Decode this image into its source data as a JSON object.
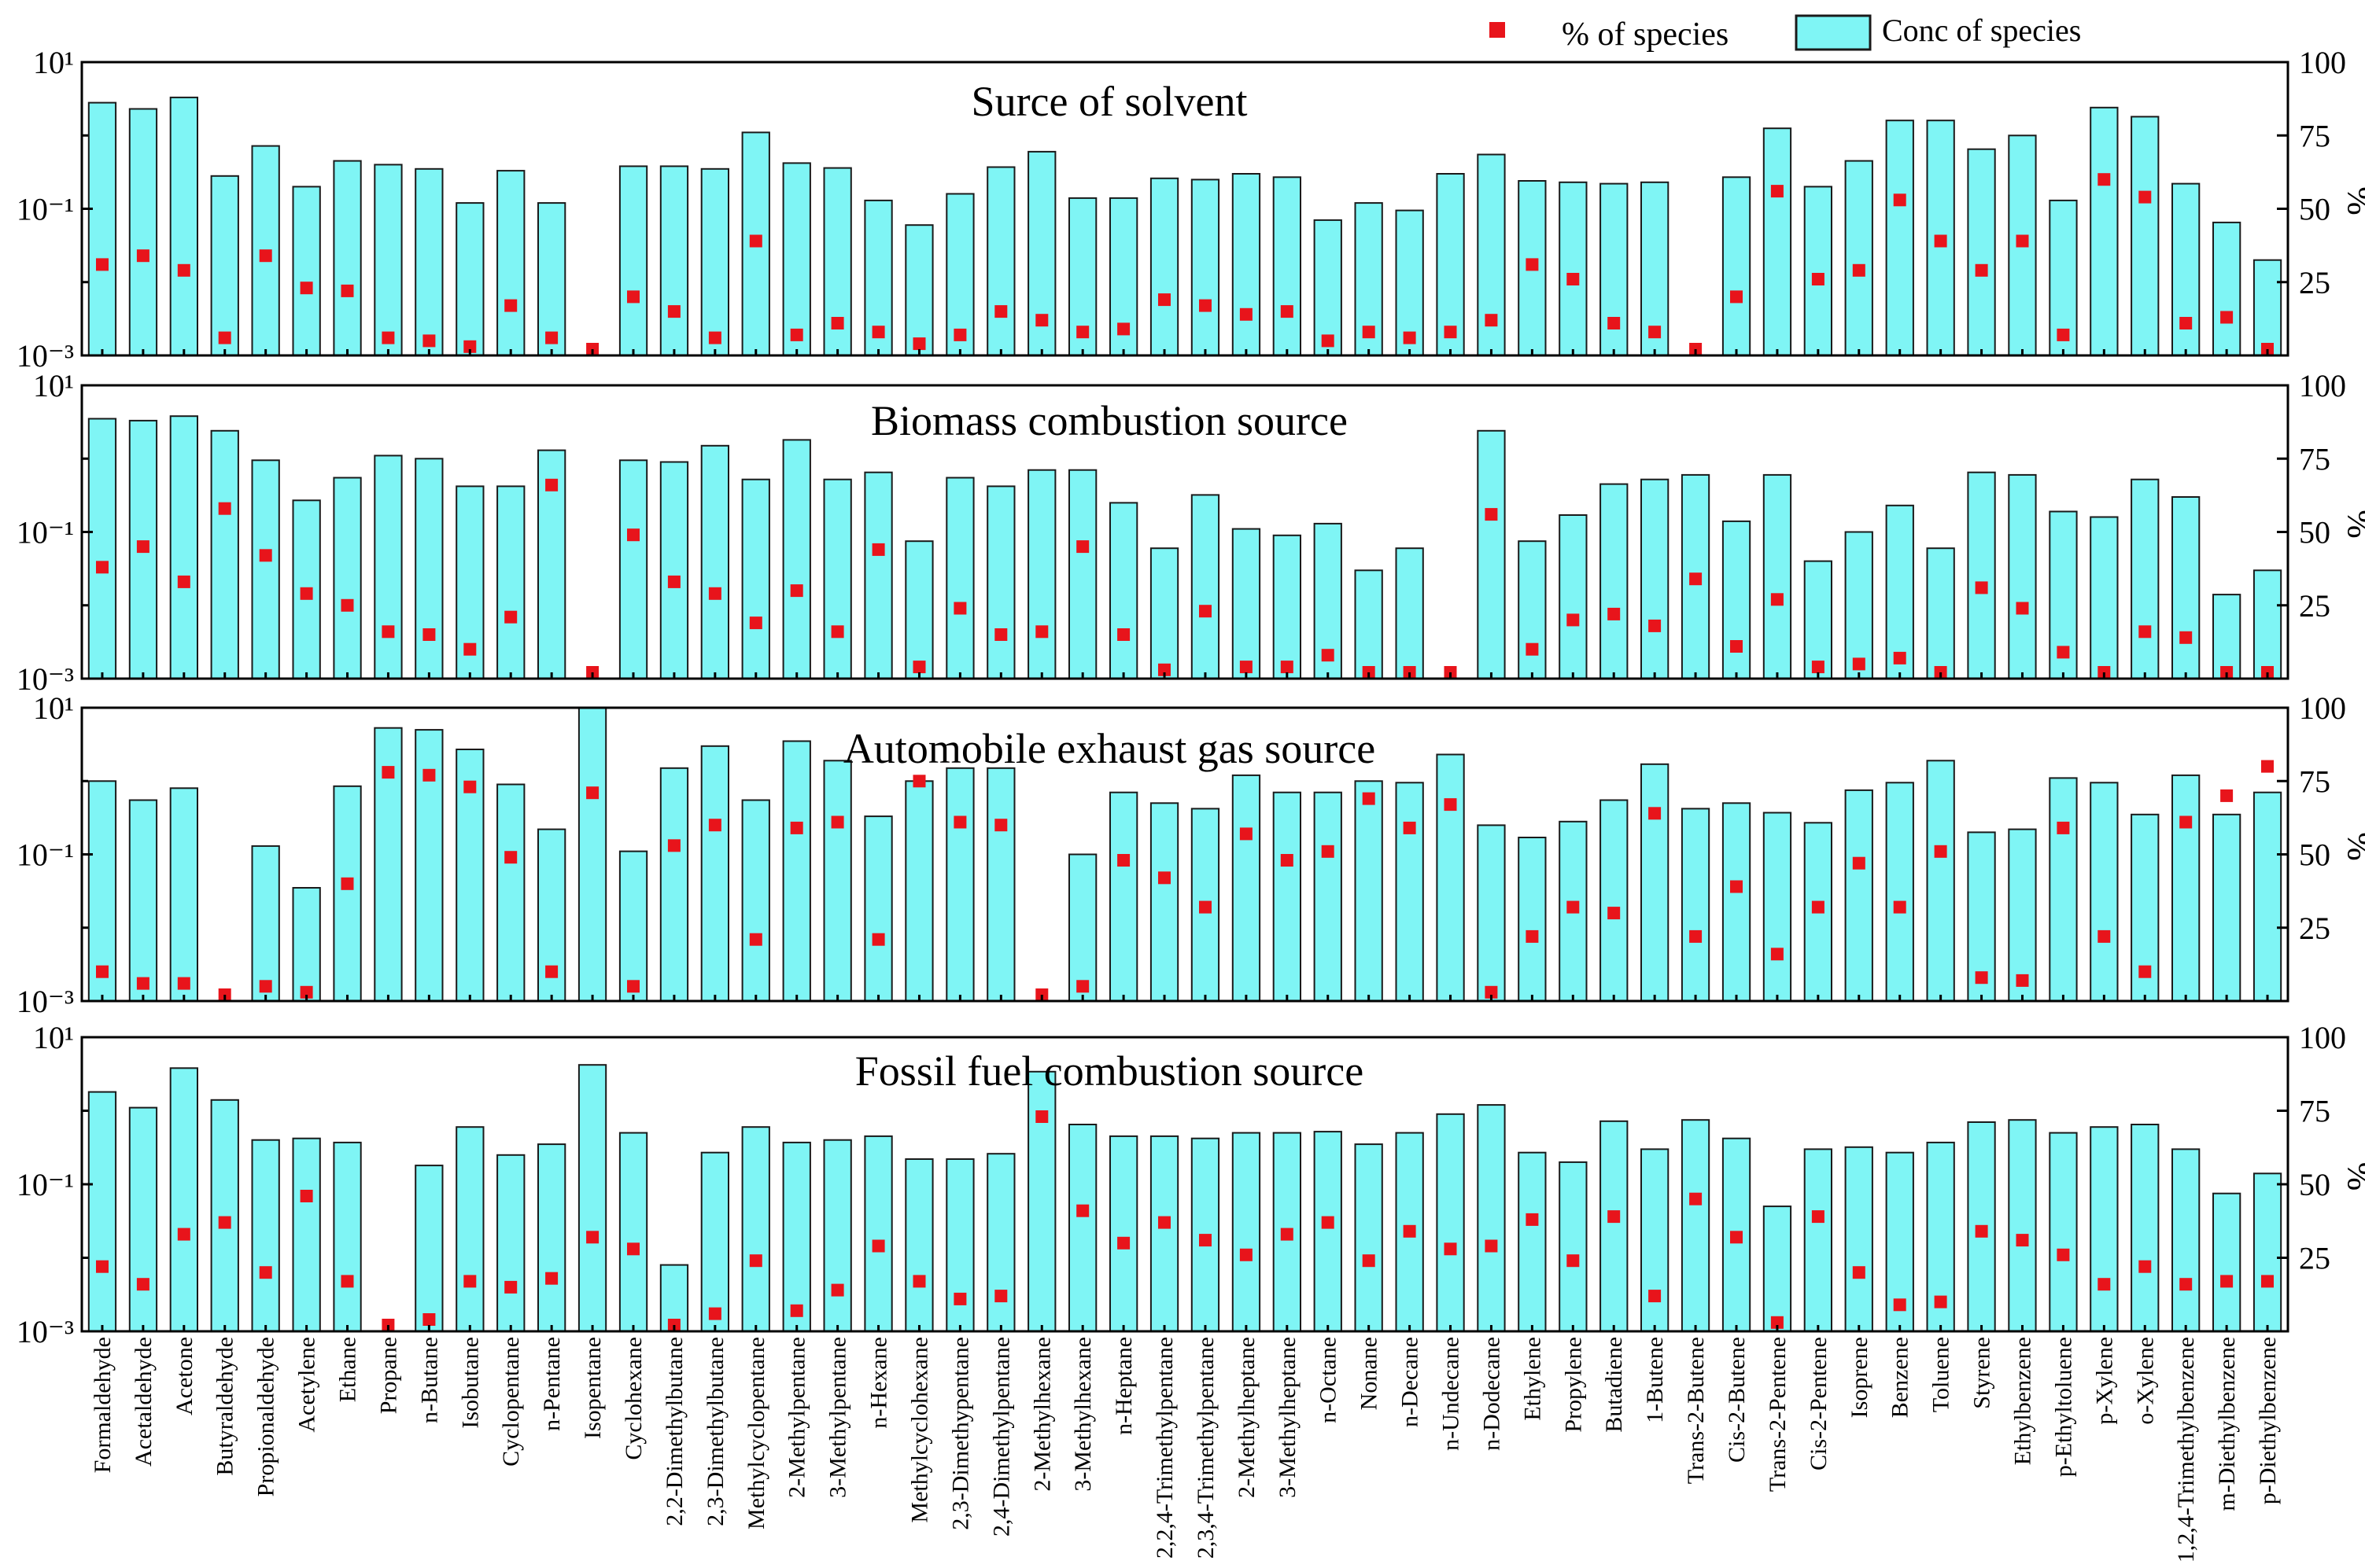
{
  "colors": {
    "bar_fill": "#7ff5f5",
    "bar_stroke": "#1a1a1a",
    "point": "#e8141b"
  },
  "legend": {
    "point_label": "% of species",
    "bar_label": "Conc of species"
  },
  "chart_data": [
    {
      "type": "bar",
      "title": "Surce of solvent",
      "categories": [
        "Formaldehyde",
        "Acetaldehyde",
        "Acetone",
        "Butyraldehyde",
        "Propionaldehyde",
        "Acetylene",
        "Ethane",
        "Propane",
        "n-Butane",
        "Isobutane",
        "Cyclopentane",
        "n-Pentane",
        "Isopentane",
        "Cyclohexane",
        "2,2-Dimethylbutane",
        "2,3-Dimethylbutane",
        "Methylcyclopentane",
        "2-Methylpentane",
        "3-Methylpentane",
        "n-Hexane",
        "Methylcyclohexane",
        "2,3-Dimethypentane",
        "2,4-Dimethylpentane",
        "2-Methylhexane",
        "3-Methylhexane",
        "n-Heptane",
        "2,2,4-Trimethylpentane",
        "2,3,4-Trimethylpentane",
        "2-Methylheptane",
        "3-Methylheptane",
        "n-Octane",
        "Nonane",
        "n-Decane",
        "n-Undecane",
        "n-Dodecane",
        "Ethylene",
        "Propylene",
        "Butadiene",
        "1-Butene",
        "Trans-2-Butene",
        "Cis-2-Butene",
        "Trans-2-Pentene",
        "Cis-2-Pentene",
        "Isoprene",
        "Benzene",
        "Toluene",
        "Styrene",
        "Ethylbenzene",
        "p-Ethyltoluene",
        "p-Xylene",
        "o-Xylene",
        "1,2,4-Trimethylbenzene",
        "m-Diethylbenzene",
        "p-Diethylbenzene"
      ],
      "series": [
        {
          "name": "Conc of species",
          "axis": "left",
          "scale": "log",
          "values": [
            2.8,
            2.3,
            3.3,
            0.28,
            0.72,
            0.2,
            0.45,
            0.4,
            0.35,
            0.12,
            0.33,
            0.12,
            0.001,
            0.38,
            0.38,
            0.35,
            1.1,
            0.42,
            0.36,
            0.13,
            0.06,
            0.16,
            0.37,
            0.6,
            0.14,
            0.14,
            0.26,
            0.25,
            0.3,
            0.27,
            0.07,
            0.12,
            0.095,
            0.3,
            0.55,
            0.24,
            0.23,
            0.22,
            0.23,
            0.001,
            0.27,
            1.25,
            0.2,
            0.45,
            1.6,
            1.6,
            0.65,
            1.0,
            0.13,
            2.4,
            1.8,
            0.22,
            0.065,
            0.02
          ]
        },
        {
          "name": "% of species",
          "axis": "right",
          "scale": "linear",
          "values": [
            31,
            34,
            29,
            6,
            34,
            23,
            22,
            6,
            5,
            3,
            17,
            6,
            1,
            20,
            15,
            6,
            39,
            7,
            11,
            8,
            4,
            7,
            15,
            12,
            8,
            9,
            19,
            17,
            14,
            15,
            5,
            8,
            6,
            8,
            12,
            31,
            26,
            11,
            8,
            1,
            20,
            56,
            26,
            29,
            53,
            39,
            29,
            39,
            7,
            60,
            54,
            11,
            13,
            2
          ]
        }
      ],
      "ylabel_left": "",
      "ylim_left": [
        0.001,
        10
      ],
      "ylabel_right": "%",
      "ylim_right": [
        0,
        100
      ],
      "yticks_left": [
        "10¹",
        "10⁻¹",
        "10⁻³"
      ],
      "yticks_right": [
        "100",
        "75",
        "50",
        "25"
      ]
    },
    {
      "type": "bar",
      "title": "Biomass combustion source",
      "categories": [
        "Formaldehyde",
        "Acetaldehyde",
        "Acetone",
        "Butyraldehyde",
        "Propionaldehyde",
        "Acetylene",
        "Ethane",
        "Propane",
        "n-Butane",
        "Isobutane",
        "Cyclopentane",
        "n-Pentane",
        "Isopentane",
        "Cyclohexane",
        "2,2-Dimethylbutane",
        "2,3-Dimethylbutane",
        "Methylcyclopentane",
        "2-Methylpentane",
        "3-Methylpentane",
        "n-Hexane",
        "Methylcyclohexane",
        "2,3-Dimethypentane",
        "2,4-Dimethylpentane",
        "2-Methylhexane",
        "3-Methylhexane",
        "n-Heptane",
        "2,2,4-Trimethylpentane",
        "2,3,4-Trimethylpentane",
        "2-Methylheptane",
        "3-Methylheptane",
        "n-Octane",
        "Nonane",
        "n-Decane",
        "n-Undecane",
        "n-Dodecane",
        "Ethylene",
        "Propylene",
        "Butadiene",
        "1-Butene",
        "Trans-2-Butene",
        "Cis-2-Butene",
        "Trans-2-Pentene",
        "Cis-2-Pentene",
        "Isoprene",
        "Benzene",
        "Toluene",
        "Styrene",
        "Ethylbenzene",
        "p-Ethyltoluene",
        "p-Xylene",
        "o-Xylene",
        "1,2,4-Trimethylbenzene",
        "m-Diethylbenzene",
        "p-Diethylbenzene"
      ],
      "series": [
        {
          "name": "Conc of species",
          "axis": "left",
          "scale": "log",
          "values": [
            3.5,
            3.3,
            3.8,
            2.4,
            0.95,
            0.27,
            0.55,
            1.1,
            1.0,
            0.42,
            0.42,
            1.3,
            0.001,
            0.95,
            0.9,
            1.5,
            0.52,
            1.8,
            0.52,
            0.65,
            0.075,
            0.55,
            0.42,
            0.7,
            0.7,
            0.25,
            0.06,
            0.32,
            0.11,
            0.09,
            0.13,
            0.03,
            0.06,
            0.001,
            2.4,
            0.075,
            0.17,
            0.45,
            0.52,
            0.6,
            0.14,
            0.6,
            0.04,
            0.1,
            0.23,
            0.06,
            0.65,
            0.6,
            0.19,
            0.16,
            0.52,
            0.3,
            0.014,
            0.03
          ]
        },
        {
          "name": "% of species",
          "axis": "right",
          "scale": "linear",
          "values": [
            38,
            45,
            33,
            58,
            42,
            29,
            25,
            16,
            15,
            10,
            21,
            66,
            0,
            49,
            33,
            29,
            19,
            30,
            16,
            44,
            4,
            24,
            15,
            16,
            45,
            15,
            3,
            23,
            4,
            4,
            8,
            1,
            2,
            0,
            56,
            10,
            20,
            22,
            18,
            34,
            11,
            27,
            4,
            5,
            7,
            1,
            31,
            24,
            9,
            2,
            16,
            14,
            1,
            2
          ]
        }
      ],
      "ylabel_left": "",
      "ylim_left": [
        0.001,
        10
      ],
      "ylabel_right": "%",
      "ylim_right": [
        0,
        100
      ],
      "yticks_left": [
        "10¹",
        "10⁻¹",
        "10⁻³"
      ],
      "yticks_right": [
        "100",
        "75",
        "50",
        "25"
      ]
    },
    {
      "type": "bar",
      "title": "Automobile exhaust gas source",
      "categories": [
        "Formaldehyde",
        "Acetaldehyde",
        "Acetone",
        "Butyraldehyde",
        "Propionaldehyde",
        "Acetylene",
        "Ethane",
        "Propane",
        "n-Butane",
        "Isobutane",
        "Cyclopentane",
        "n-Pentane",
        "Isopentane",
        "Cyclohexane",
        "2,2-Dimethylbutane",
        "2,3-Dimethylbutane",
        "Methylcyclopentane",
        "2-Methylpentane",
        "3-Methylpentane",
        "n-Hexane",
        "Methylcyclohexane",
        "2,3-Dimethypentane",
        "2,4-Dimethylpentane",
        "2-Methylhexane",
        "3-Methylhexane",
        "n-Heptane",
        "2,2,4-Trimethylpentane",
        "2,3,4-Trimethylpentane",
        "2-Methylheptane",
        "3-Methylheptane",
        "n-Octane",
        "Nonane",
        "n-Decane",
        "n-Undecane",
        "n-Dodecane",
        "Ethylene",
        "Propylene",
        "Butadiene",
        "1-Butene",
        "Trans-2-Butene",
        "Cis-2-Butene",
        "Trans-2-Pentene",
        "Cis-2-Pentene",
        "Isoprene",
        "Benzene",
        "Toluene",
        "Styrene",
        "Ethylbenzene",
        "p-Ethyltoluene",
        "p-Xylene",
        "o-Xylene",
        "1,2,4-Trimethylbenzene",
        "m-Diethylbenzene",
        "p-Diethylbenzene"
      ],
      "series": [
        {
          "name": "Conc of species",
          "axis": "left",
          "scale": "log",
          "values": [
            1.0,
            0.55,
            0.8,
            0.001,
            0.13,
            0.035,
            0.85,
            5.3,
            5.0,
            2.7,
            0.9,
            0.22,
            10,
            0.11,
            1.5,
            3.0,
            0.55,
            3.5,
            1.9,
            0.33,
            1.0,
            1.5,
            1.5,
            0.001,
            0.1,
            0.7,
            0.5,
            0.42,
            1.2,
            0.7,
            0.7,
            1.0,
            0.95,
            2.3,
            0.25,
            0.17,
            0.28,
            0.55,
            1.7,
            0.42,
            0.5,
            0.37,
            0.27,
            0.75,
            0.95,
            1.9,
            0.2,
            0.22,
            1.1,
            0.95,
            0.35,
            1.2,
            0.35,
            0.7
          ]
        },
        {
          "name": "% of species",
          "axis": "right",
          "scale": "linear",
          "values": [
            10,
            6,
            6,
            0,
            5,
            3,
            40,
            78,
            77,
            73,
            49,
            10,
            71,
            5,
            53,
            60,
            21,
            59,
            61,
            21,
            75,
            61,
            60,
            0,
            5,
            48,
            42,
            32,
            57,
            48,
            51,
            69,
            59,
            67,
            3,
            22,
            32,
            30,
            64,
            22,
            39,
            16,
            32,
            47,
            32,
            51,
            8,
            7,
            59,
            22,
            10,
            61,
            70,
            80
          ]
        }
      ],
      "ylabel_left": "",
      "ylim_left": [
        0.001,
        10
      ],
      "ylabel_right": "%",
      "ylim_right": [
        0,
        100
      ],
      "yticks_left": [
        "10¹",
        "10⁻¹",
        "10⁻³"
      ],
      "yticks_right": [
        "100",
        "75",
        "50",
        "25"
      ]
    },
    {
      "type": "bar",
      "title": "Fossil fuel combustion source",
      "categories": [
        "Formaldehyde",
        "Acetaldehyde",
        "Acetone",
        "Butyraldehyde",
        "Propionaldehyde",
        "Acetylene",
        "Ethane",
        "Propane",
        "n-Butane",
        "Isobutane",
        "Cyclopentane",
        "n-Pentane",
        "Isopentane",
        "Cyclohexane",
        "2,2-Dimethylbutane",
        "2,3-Dimethylbutane",
        "Methylcyclopentane",
        "2-Methylpentane",
        "3-Methylpentane",
        "n-Hexane",
        "Methylcyclohexane",
        "2,3-Dimethypentane",
        "2,4-Dimethylpentane",
        "2-Methylhexane",
        "3-Methylhexane",
        "n-Heptane",
        "2,2,4-Trimethylpentane",
        "2,3,4-Trimethylpentane",
        "2-Methylheptane",
        "3-Methylheptane",
        "n-Octane",
        "Nonane",
        "n-Decane",
        "n-Undecane",
        "n-Dodecane",
        "Ethylene",
        "Propylene",
        "Butadiene",
        "1-Butene",
        "Trans-2-Butene",
        "Cis-2-Butene",
        "Trans-2-Pentene",
        "Cis-2-Pentene",
        "Isoprene",
        "Benzene",
        "Toluene",
        "Styrene",
        "Ethylbenzene",
        "p-Ethyltoluene",
        "p-Xylene",
        "o-Xylene",
        "1,2,4-Trimethylbenzene",
        "m-Diethylbenzene",
        "p-Diethylbenzene"
      ],
      "series": [
        {
          "name": "Conc of species",
          "axis": "left",
          "scale": "log",
          "values": [
            1.8,
            1.1,
            3.8,
            1.4,
            0.4,
            0.42,
            0.37,
            0.001,
            0.18,
            0.6,
            0.25,
            0.35,
            4.2,
            0.5,
            0.008,
            0.27,
            0.6,
            0.37,
            0.4,
            0.45,
            0.22,
            0.22,
            0.26,
            3.4,
            0.65,
            0.45,
            0.45,
            0.42,
            0.5,
            0.5,
            0.52,
            0.35,
            0.5,
            0.9,
            1.2,
            0.27,
            0.2,
            0.72,
            0.3,
            0.75,
            0.42,
            0.05,
            0.3,
            0.32,
            0.27,
            0.37,
            0.7,
            0.75,
            0.5,
            0.6,
            0.65,
            0.3,
            0.075,
            0.14
          ]
        },
        {
          "name": "% of species",
          "axis": "right",
          "scale": "linear",
          "values": [
            22,
            16,
            33,
            37,
            20,
            46,
            17,
            1,
            4,
            17,
            15,
            18,
            32,
            28,
            1,
            6,
            24,
            7,
            14,
            29,
            17,
            11,
            12,
            73,
            41,
            30,
            37,
            31,
            26,
            33,
            37,
            24,
            34,
            28,
            29,
            38,
            24,
            39,
            12,
            45,
            32,
            3,
            39,
            20,
            9,
            10,
            34,
            31,
            26,
            16,
            22,
            16,
            17,
            17
          ]
        }
      ],
      "ylabel_left": "",
      "ylim_left": [
        0.001,
        10
      ],
      "ylabel_right": "%",
      "ylim_right": [
        0,
        100
      ],
      "yticks_left": [
        "10¹",
        "10⁻¹",
        "10⁻³"
      ],
      "yticks_right": [
        "100",
        "75",
        "50",
        "25"
      ]
    }
  ],
  "x_labels": [
    "Formaldehyde",
    "Acetaldehyde",
    "Acetone",
    "Butyraldehyde",
    "Propionaldehyde",
    "Acetylene",
    "Ethane",
    "Propane",
    "n-Butane",
    "Isobutane",
    "Cyclopentane",
    "n-Pentane",
    "Isopentane",
    "Cyclohexane",
    "2,2-Dimethylbutane",
    "2,3-Dimethylbutane",
    "Methylcyclopentane",
    "2-Methylpentane",
    "3-Methylpentane",
    "n-Hexane",
    "Methylcyclohexane",
    "2,3-Dimethypentane",
    "2,4-Dimethylpentane",
    "2-Methylhexane",
    "3-Methylhexane",
    "n-Heptane",
    "2,2,4-Trimethylpentane",
    "2,3,4-Trimethylpentane",
    "2-Methylheptane",
    "3-Methylheptane",
    "n-Octane",
    "Nonane",
    "n-Decane",
    "n-Undecane",
    "n-Dodecane",
    "Ethylene",
    "Propylene",
    "Butadiene",
    "1-Butene",
    "Trans-2-Butene",
    "Cis-2-Butene",
    "Trans-2-Pentene",
    "Cis-2-Pentene",
    "Isoprene",
    "Benzene",
    "Toluene",
    "Styrene",
    "Ethylbenzene",
    "p-Ethyltoluene",
    "p-Xylene",
    "o-Xylene",
    "1,2,4-Trimethylbenzene",
    "m-Diethylbenzene",
    "p-Diethylbenzene"
  ]
}
